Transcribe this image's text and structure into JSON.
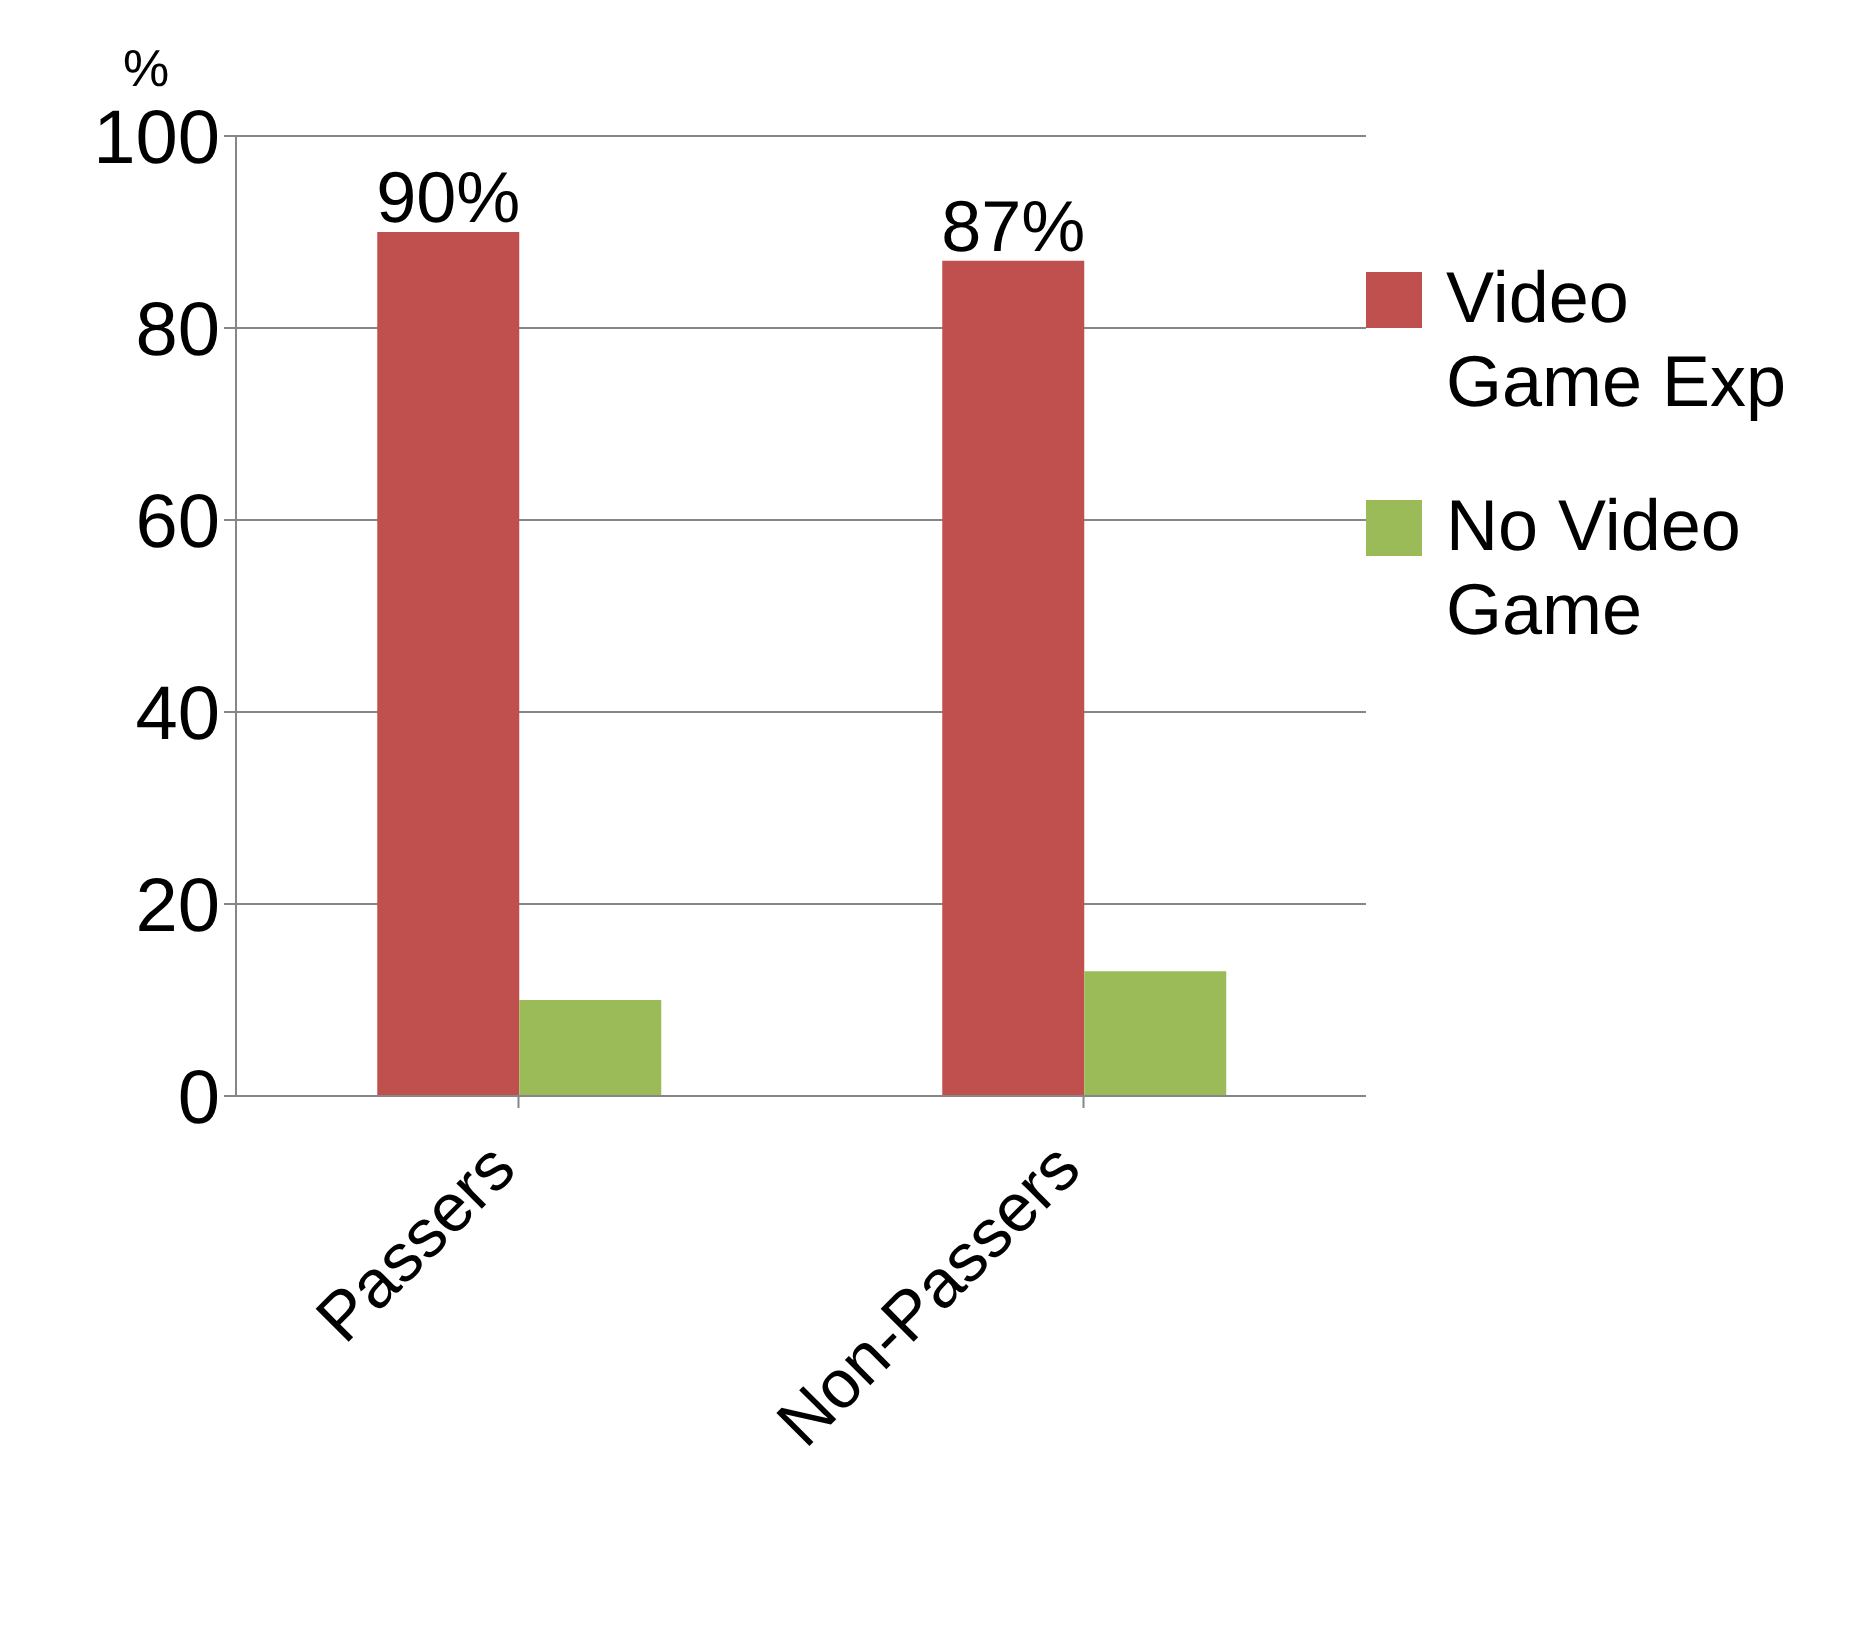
{
  "chart_data": {
    "type": "bar",
    "ylabel": "%",
    "categories": [
      "Passers",
      "Non-Passers"
    ],
    "series": [
      {
        "name": "Video Game Exp",
        "color": "#c0504d",
        "values": [
          90,
          87
        ],
        "value_labels": [
          "90%",
          "87%"
        ]
      },
      {
        "name": "No Video Game",
        "color": "#9bbb59",
        "values": [
          10,
          13
        ]
      }
    ],
    "ylim": [
      0,
      100
    ],
    "yticks": [
      0,
      20,
      40,
      60,
      80,
      100
    ],
    "grid": "y",
    "legend": "right"
  }
}
